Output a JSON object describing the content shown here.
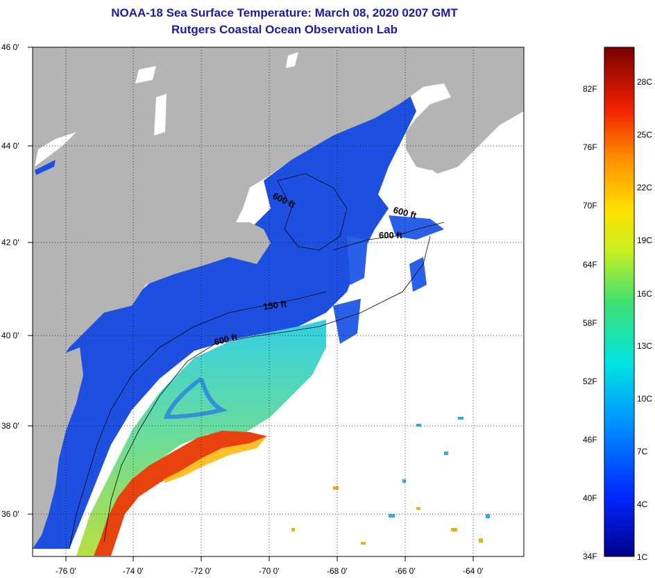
{
  "header": {
    "title": "NOAA-18 Sea Surface Temperature:  March 08, 2020 0207 GMT",
    "subtitle": "Rutgers Coastal Ocean Observation Lab"
  },
  "map": {
    "lat_labels": [
      "46 0'",
      "44 0'",
      "42 0'",
      "40 0'",
      "38 0'",
      "36 0'"
    ],
    "lon_labels": [
      "-76 0'",
      "-74 0'",
      "-72 0'",
      "-70 0'",
      "-68 0'",
      "-66 0'",
      "-64 0'"
    ],
    "contour_labels": [
      "600 ft",
      "600 ft",
      "600 ft",
      "150 ft",
      "600 ft"
    ],
    "colors": {
      "land": "#b4b4b4",
      "cold_water": "#1c4ee0",
      "mid_water": "#3ec8e0",
      "warm_water": "#e63a10",
      "no_data": "#ffffff"
    }
  },
  "colorbar": {
    "fahrenheit": [
      "82F",
      "76F",
      "70F",
      "64F",
      "58F",
      "52F",
      "46F",
      "40F",
      "34F"
    ],
    "celsius": [
      "28C",
      "25C",
      "22C",
      "19C",
      "16C",
      "13C",
      "10C",
      "7C",
      "4C",
      "1C"
    ]
  }
}
